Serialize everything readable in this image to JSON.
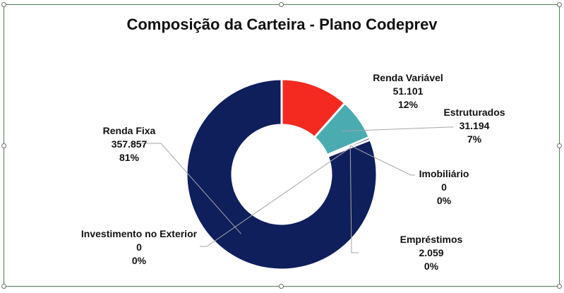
{
  "chart_data": {
    "type": "pie",
    "variant": "donut",
    "title": "Composição da Carteira - Plano Codeprev",
    "slices": [
      {
        "name": "Renda Fixa",
        "value": "357.857",
        "percent": "81%",
        "raw": 357857,
        "color": "#0f1f5c"
      },
      {
        "name": "Renda Variável",
        "value": "51.101",
        "percent": "12%",
        "raw": 51101,
        "color": "#f42a20"
      },
      {
        "name": "Estruturados",
        "value": "31.194",
        "percent": "7%",
        "raw": 31194,
        "color": "#4aacb0"
      },
      {
        "name": "Imobiliário",
        "value": "0",
        "percent": "0%",
        "raw": 0,
        "color": "#2f7ad0"
      },
      {
        "name": "Empréstimos",
        "value": "2.059",
        "percent": "0%",
        "raw": 2059,
        "color": "#0f1f5c"
      },
      {
        "name": "Investimento no Exterior",
        "value": "0",
        "percent": "0%",
        "raw": 0,
        "color": "#0f1f5c"
      }
    ],
    "legend": "none"
  }
}
